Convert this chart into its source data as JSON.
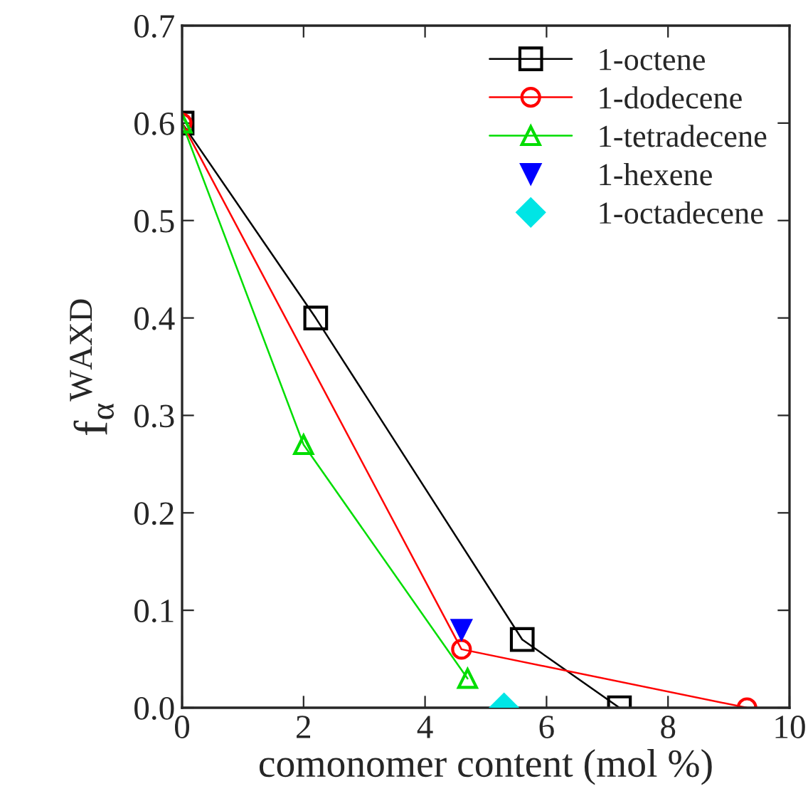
{
  "chart_data": {
    "type": "line",
    "xlabel": "comonomer content (mol %)",
    "ylabel": "f$_{α}$$^{WAXD}$",
    "xlim": [
      0,
      10
    ],
    "xticks": [
      0,
      2,
      4,
      6,
      8,
      10
    ],
    "ylim": [
      0,
      0.7
    ],
    "yticks": [
      {
        "value": 0,
        "label": "0.0"
      },
      0.1,
      0.2,
      0.3,
      0.4,
      0.5,
      0.6,
      0.7
    ],
    "grid": false,
    "legend": "top right",
    "series": [
      {
        "name": "1-octene",
        "marker": "square",
        "color": "#000000",
        "x": [
          0,
          2.2,
          5.6,
          7.2
        ],
        "values": [
          0.6,
          0.4,
          0.07,
          0.0
        ]
      },
      {
        "name": "1-dodecene",
        "marker": "circle",
        "color": "#ff0000",
        "x": [
          0,
          4.6,
          9.3
        ],
        "values": [
          0.6,
          0.06,
          0.0
        ]
      },
      {
        "name": "1-tetradecene",
        "marker": "triangle",
        "color": "#00dd00",
        "x": [
          0,
          2.0,
          4.7
        ],
        "values": [
          0.6,
          0.27,
          0.03
        ]
      },
      {
        "name": "1-hexene",
        "type": "scatter",
        "marker": "triangle_down",
        "color": "#0000ff",
        "x": [
          4.6
        ],
        "values": [
          0.08
        ]
      },
      {
        "name": "1-octadecene",
        "type": "scatter",
        "marker": "diamond",
        "color": "#00e5e5",
        "x": [
          5.3
        ],
        "values": [
          0.0
        ]
      }
    ]
  }
}
